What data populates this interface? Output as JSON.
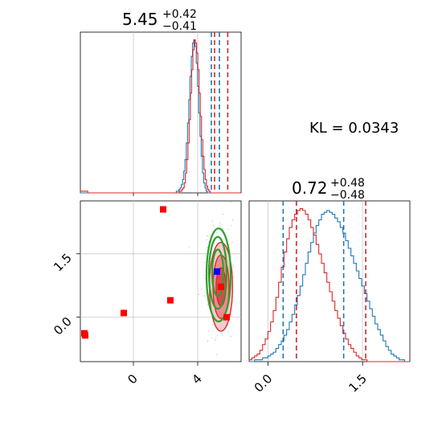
{
  "chart_data": [
    {
      "type": "histogram",
      "panel": "marginal-param-1",
      "title": {
        "median": "5.45",
        "plus": "+0.42",
        "minus": "−0.41"
      },
      "xlim": [
        -3.3,
        6.7
      ],
      "series": [
        {
          "name": "",
          "color": "#1f77b4",
          "counts": [
            0,
            0,
            0,
            0,
            0,
            0,
            0,
            0,
            0,
            0,
            0,
            0,
            0,
            0,
            0,
            0,
            0,
            0,
            0,
            0,
            0,
            0,
            0,
            0,
            0,
            0,
            0,
            0,
            0,
            0,
            0,
            0,
            0,
            0,
            0,
            0,
            0,
            0,
            0,
            0,
            0,
            0,
            0,
            0,
            0,
            0,
            0,
            0,
            0,
            0,
            0,
            0,
            0,
            0,
            0,
            0,
            0,
            0,
            0,
            0,
            0,
            0,
            0,
            0,
            0,
            0,
            0,
            0,
            0,
            0,
            0,
            0,
            0,
            0,
            0,
            0,
            0,
            1,
            1,
            2,
            3,
            5,
            8,
            13,
            20,
            30,
            42,
            56,
            70,
            82,
            90,
            92,
            88,
            78,
            64,
            48,
            34,
            22,
            12,
            6,
            3,
            1,
            0,
            0,
            0,
            0,
            0,
            0,
            0,
            0,
            0,
            0,
            0,
            0,
            0,
            0,
            0,
            0,
            0,
            0,
            0,
            0,
            0,
            0,
            0,
            0,
            0,
            0,
            0
          ]
        },
        {
          "name": "",
          "color": "#d62728",
          "counts": [
            1,
            1,
            1,
            1,
            1,
            1,
            0,
            0,
            0,
            0,
            0,
            0,
            0,
            0,
            0,
            0,
            0,
            0,
            0,
            0,
            0,
            0,
            0,
            0,
            0,
            0,
            0,
            0,
            0,
            0,
            0,
            0,
            0,
            0,
            0,
            0,
            0,
            0,
            0,
            0,
            0,
            0,
            0,
            0,
            0,
            0,
            0,
            0,
            0,
            0,
            0,
            0,
            0,
            0,
            0,
            0,
            0,
            0,
            0,
            0,
            0,
            0,
            0,
            0,
            0,
            0,
            0,
            0,
            0,
            0,
            0,
            0,
            0,
            0,
            0,
            0,
            0,
            0,
            0,
            0,
            1,
            1,
            2,
            3,
            6,
            12,
            20,
            30,
            44,
            60,
            74,
            86,
            92,
            90,
            84,
            74,
            60,
            46,
            32,
            22,
            14,
            8,
            4,
            2,
            1,
            0,
            0,
            0,
            0,
            0,
            0,
            0,
            0,
            0,
            0,
            0,
            0,
            0,
            0,
            0,
            0,
            0,
            0,
            0,
            0,
            0,
            0,
            0,
            0,
            0
          ]
        }
      ],
      "quantile_lines": [
        {
          "x": 4.85,
          "color": "#1f77b4"
        },
        {
          "x": 5.35,
          "color": "#1f77b4"
        },
        {
          "x": 5.05,
          "color": "#d62728"
        },
        {
          "x": 5.87,
          "color": "#d62728"
        }
      ]
    },
    {
      "type": "scatter",
      "panel": "joint-2d",
      "xlim": [
        -3.3,
        6.7
      ],
      "ylim": [
        -1.05,
        2.75
      ],
      "xticks": [
        {
          "v": 0,
          "label": "0"
        },
        {
          "v": 4,
          "label": "4"
        }
      ],
      "yticks": [
        {
          "v": 0.0,
          "label": "0.0"
        },
        {
          "v": 1.5,
          "label": "1.5"
        }
      ],
      "red_points": [
        {
          "x": 1.85,
          "y": 2.55
        },
        {
          "x": -0.6,
          "y": 0.1
        },
        {
          "x": 2.3,
          "y": 0.4
        },
        {
          "x": -3.05,
          "y": -0.38
        },
        {
          "x": -3.0,
          "y": -0.43
        },
        {
          "x": 5.45,
          "y": 0.72
        },
        {
          "x": 5.8,
          "y": 0.0
        }
      ],
      "blue_points": [
        {
          "x": 5.2,
          "y": 1.08
        }
      ],
      "contours": [
        {
          "cx": 5.3,
          "cy": 1.0,
          "rx": 0.75,
          "ry": 1.1,
          "color": "#2ca02c"
        },
        {
          "cx": 5.25,
          "cy": 1.05,
          "rx": 0.55,
          "ry": 0.85,
          "color": "#2ca02c"
        },
        {
          "cx": 5.25,
          "cy": 1.05,
          "rx": 0.35,
          "ry": 0.55,
          "color": "#2ca02c"
        },
        {
          "cx": 5.45,
          "cy": 0.72,
          "rx": 0.72,
          "ry": 1.05,
          "color": "#d62728"
        },
        {
          "cx": 5.45,
          "cy": 0.72,
          "rx": 0.5,
          "ry": 0.75,
          "color": "#d62728"
        },
        {
          "cx": 5.45,
          "cy": 0.72,
          "rx": 0.3,
          "ry": 0.45,
          "color": "#d62728"
        }
      ]
    },
    {
      "type": "histogram",
      "panel": "marginal-param-2",
      "title": {
        "median": "0.72",
        "plus": "+0.48",
        "minus": "−0.48"
      },
      "xlim": [
        -0.3,
        2.25
      ],
      "xticks": [
        {
          "v": 0.0,
          "label": "0.0"
        },
        {
          "v": 1.5,
          "label": "1.5"
        }
      ],
      "series": [
        {
          "name": "",
          "color": "#1f77b4",
          "counts": [
            0,
            0,
            1,
            1,
            1,
            2,
            2,
            3,
            4,
            5,
            7,
            9,
            11,
            14,
            17,
            21,
            25,
            30,
            35,
            40,
            46,
            52,
            58,
            63,
            68,
            72,
            75,
            78,
            79,
            80,
            79,
            78,
            76,
            74,
            71,
            68,
            64,
            60,
            56,
            52,
            48,
            44,
            40,
            36,
            32,
            28,
            24,
            20,
            17,
            14,
            11,
            8,
            6,
            4,
            3,
            2,
            1,
            1,
            0,
            0
          ]
        },
        {
          "name": "",
          "color": "#d62728",
          "counts": [
            1,
            2,
            3,
            4,
            6,
            9,
            12,
            16,
            21,
            27,
            34,
            42,
            50,
            58,
            65,
            71,
            75,
            78,
            80,
            81,
            80,
            78,
            75,
            71,
            67,
            62,
            57,
            52,
            47,
            42,
            37,
            32,
            27,
            23,
            19,
            15,
            12,
            9,
            7,
            5,
            3,
            2,
            1,
            1,
            0,
            0,
            0,
            0,
            0,
            0,
            0,
            0,
            0,
            0,
            0,
            0,
            0,
            0,
            0,
            0
          ]
        }
      ],
      "quantile_lines": [
        {
          "x": 0.24,
          "color": "#1f77b4"
        },
        {
          "x": 1.2,
          "color": "#1f77b4"
        },
        {
          "x": 0.45,
          "color": "#d62728"
        },
        {
          "x": 1.55,
          "color": "#d62728"
        }
      ]
    }
  ],
  "annotation": {
    "kl_text": "KL = 0.0343"
  }
}
